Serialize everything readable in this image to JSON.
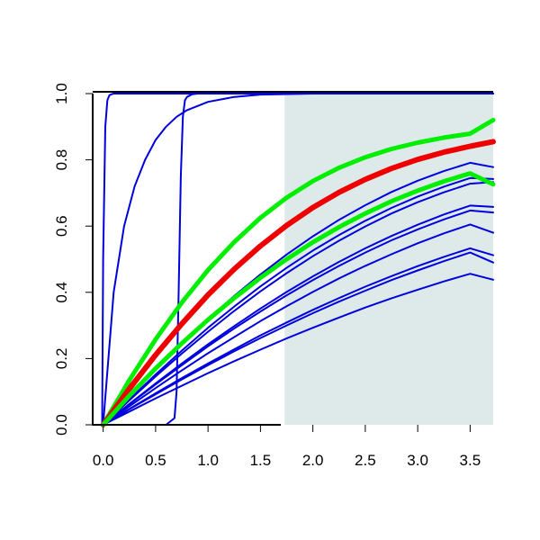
{
  "chart_data": {
    "type": "line",
    "title": "",
    "xlabel": "",
    "ylabel": "",
    "xlim": [
      -0.1,
      3.72
    ],
    "ylim": [
      0,
      1
    ],
    "grid": false,
    "shaded_region": {
      "x_from": 1.73,
      "x_to": 3.72,
      "color": "#deeaea"
    },
    "x_ticks": [
      0.0,
      0.5,
      1.0,
      1.5,
      2.0,
      2.5,
      3.0,
      3.5
    ],
    "x_tick_labels": [
      "0.0",
      "0.5",
      "1.0",
      "1.5",
      "2.0",
      "2.5",
      "3.0",
      "3.5"
    ],
    "y_ticks": [
      0.0,
      0.2,
      0.4,
      0.6,
      0.8,
      1.0
    ],
    "y_tick_labels": [
      "0.0",
      "0.2",
      "0.4",
      "0.6",
      "0.8",
      "1.0"
    ],
    "x": [
      0.0,
      0.25,
      0.5,
      0.75,
      1.0,
      1.25,
      1.5,
      1.75,
      2.0,
      2.25,
      2.5,
      2.75,
      3.0,
      3.25,
      3.5,
      3.72
    ],
    "series": [
      {
        "color": "#0000dd",
        "width": 2,
        "x": [
          -0.01,
          0.0,
          0.02,
          0.04,
          0.06,
          0.08,
          0.1,
          0.5,
          1.0,
          3.72
        ],
        "values": [
          0.0,
          0.5,
          0.9,
          0.98,
          0.995,
          0.998,
          1.0,
          1.0,
          1.0,
          1.0
        ]
      },
      {
        "color": "#0000dd",
        "width": 2,
        "x": [
          0.0,
          0.1,
          0.2,
          0.3,
          0.4,
          0.5,
          0.6,
          0.7,
          0.8,
          1.0,
          1.25,
          1.5,
          2.0,
          3.72
        ],
        "values": [
          0.0,
          0.4,
          0.6,
          0.72,
          0.8,
          0.86,
          0.9,
          0.93,
          0.95,
          0.975,
          0.99,
          0.997,
          1.0,
          1.0
        ]
      },
      {
        "color": "#0000dd",
        "width": 2,
        "x": [
          -0.1,
          0.6,
          0.68,
          0.7,
          0.72,
          0.74,
          0.76,
          0.78,
          0.8,
          0.85,
          0.9,
          3.72
        ],
        "values": [
          0.0,
          0.0,
          0.02,
          0.1,
          0.4,
          0.75,
          0.93,
          0.98,
          0.99,
          0.998,
          1.0,
          1.0
        ]
      },
      {
        "color": "#0000dd",
        "width": 2,
        "values": [
          0.0,
          0.085,
          0.166,
          0.245,
          0.319,
          0.389,
          0.454,
          0.514,
          0.569,
          0.619,
          0.663,
          0.703,
          0.737,
          0.766,
          0.791,
          0.778
        ]
      },
      {
        "color": "#0000dd",
        "width": 2,
        "values": [
          0.0,
          0.077,
          0.152,
          0.224,
          0.293,
          0.357,
          0.418,
          0.474,
          0.526,
          0.573,
          0.616,
          0.655,
          0.689,
          0.719,
          0.745,
          0.742
        ]
      },
      {
        "color": "#0000dd",
        "width": 2,
        "values": [
          0.0,
          0.074,
          0.146,
          0.215,
          0.281,
          0.344,
          0.403,
          0.458,
          0.509,
          0.556,
          0.599,
          0.638,
          0.672,
          0.702,
          0.728,
          0.733
        ]
      },
      {
        "color": "#0000dd",
        "width": 2,
        "values": [
          0.0,
          0.063,
          0.125,
          0.185,
          0.243,
          0.298,
          0.351,
          0.401,
          0.448,
          0.492,
          0.533,
          0.57,
          0.604,
          0.635,
          0.662,
          0.658
        ]
      },
      {
        "color": "#0000dd",
        "width": 2,
        "values": [
          0.0,
          0.062,
          0.122,
          0.18,
          0.237,
          0.291,
          0.342,
          0.391,
          0.437,
          0.48,
          0.52,
          0.557,
          0.59,
          0.62,
          0.647,
          0.641
        ]
      },
      {
        "color": "#0000dd",
        "width": 2,
        "values": [
          0.0,
          0.056,
          0.111,
          0.164,
          0.216,
          0.265,
          0.313,
          0.358,
          0.401,
          0.442,
          0.48,
          0.515,
          0.548,
          0.578,
          0.605,
          0.58
        ]
      },
      {
        "color": "#0000dd",
        "width": 2,
        "values": [
          0.0,
          0.048,
          0.095,
          0.141,
          0.185,
          0.228,
          0.27,
          0.309,
          0.347,
          0.383,
          0.417,
          0.449,
          0.479,
          0.507,
          0.533,
          0.512
        ]
      },
      {
        "color": "#0000dd",
        "width": 2,
        "values": [
          0.0,
          0.047,
          0.092,
          0.137,
          0.18,
          0.222,
          0.262,
          0.3,
          0.337,
          0.372,
          0.405,
          0.437,
          0.466,
          0.494,
          0.52,
          0.49
        ]
      },
      {
        "color": "#0000dd",
        "width": 2,
        "values": [
          0.0,
          0.04,
          0.08,
          0.118,
          0.156,
          0.192,
          0.227,
          0.261,
          0.293,
          0.324,
          0.354,
          0.382,
          0.408,
          0.433,
          0.456,
          0.438
        ]
      },
      {
        "color": "#00ee00",
        "width": 5,
        "values": [
          0.0,
          0.135,
          0.258,
          0.369,
          0.467,
          0.552,
          0.625,
          0.686,
          0.736,
          0.776,
          0.808,
          0.833,
          0.852,
          0.867,
          0.879,
          0.92
        ]
      },
      {
        "color": "#ee0000",
        "width": 6,
        "values": [
          0.0,
          0.109,
          0.211,
          0.305,
          0.392,
          0.47,
          0.54,
          0.602,
          0.656,
          0.702,
          0.741,
          0.774,
          0.801,
          0.823,
          0.841,
          0.855
        ]
      },
      {
        "color": "#00ee00",
        "width": 5,
        "values": [
          0.0,
          0.088,
          0.17,
          0.246,
          0.317,
          0.383,
          0.444,
          0.5,
          0.551,
          0.597,
          0.638,
          0.675,
          0.707,
          0.735,
          0.759,
          0.726
        ]
      }
    ]
  }
}
